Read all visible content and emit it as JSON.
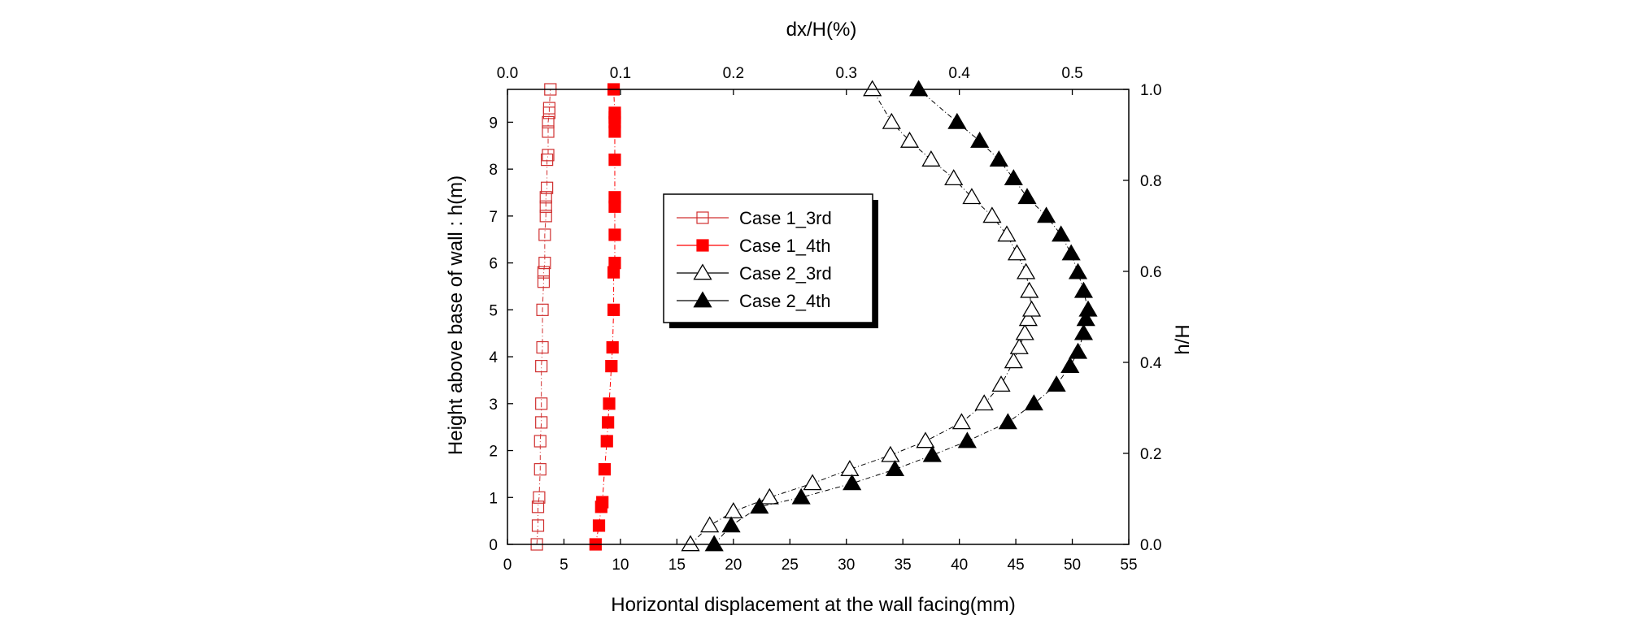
{
  "chart_data": {
    "type": "scatter",
    "title": "",
    "xlabel": "Horizontal displacement at the wall facing(mm)",
    "ylabel": "Height above base of wall : h(m)",
    "x2label": "dx/H(%)",
    "y2label": "h/H",
    "xlim": [
      0,
      55
    ],
    "ylim": [
      0,
      9.7
    ],
    "x2lim": [
      0,
      0.55
    ],
    "y2lim": [
      0,
      1.0
    ],
    "xticks": [
      "0",
      "5",
      "10",
      "15",
      "20",
      "25",
      "30",
      "35",
      "40",
      "45",
      "50",
      "55"
    ],
    "yticks": [
      "0",
      "1",
      "2",
      "3",
      "4",
      "5",
      "6",
      "7",
      "8",
      "9"
    ],
    "x2ticks": [
      "0.0",
      "0.1",
      "0.2",
      "0.3",
      "0.4",
      "0.5"
    ],
    "y2ticks": [
      "0.0",
      "0.2",
      "0.4",
      "0.6",
      "0.8",
      "1.0"
    ],
    "legend": {
      "position": "upper-middle"
    },
    "series": [
      {
        "name": "Case 1_3rd",
        "marker": "square-open",
        "color": "#d03030",
        "line_dash": "6,3,1,3",
        "x": [
          2.6,
          2.7,
          2.7,
          2.8,
          2.9,
          2.9,
          3.0,
          3.0,
          3.0,
          3.1,
          3.1,
          3.2,
          3.2,
          3.3,
          3.3,
          3.4,
          3.4,
          3.4,
          3.5,
          3.5,
          3.6,
          3.6,
          3.6,
          3.7,
          3.7,
          3.8
        ],
        "y": [
          0,
          0.4,
          0.8,
          1.0,
          1.6,
          2.2,
          2.6,
          3.0,
          3.8,
          4.2,
          5.0,
          5.6,
          5.8,
          6.0,
          6.6,
          7.0,
          7.2,
          7.4,
          7.6,
          8.2,
          8.3,
          8.8,
          9.0,
          9.2,
          9.3,
          9.7
        ]
      },
      {
        "name": "Case 1_4th",
        "marker": "square-filled",
        "color": "#ff0000",
        "line_dash": "6,3,1,3",
        "x": [
          7.8,
          8.1,
          8.3,
          8.4,
          8.6,
          8.8,
          8.9,
          9.0,
          9.2,
          9.3,
          9.4,
          9.4,
          9.5,
          9.5,
          9.5,
          9.5,
          9.5,
          9.5,
          9.5,
          9.5,
          9.5,
          9.4
        ],
        "y": [
          0,
          0.4,
          0.8,
          0.9,
          1.6,
          2.2,
          2.6,
          3.0,
          3.8,
          4.2,
          5.0,
          5.8,
          6.0,
          6.6,
          7.2,
          7.4,
          8.2,
          8.8,
          9.0,
          9.1,
          9.2,
          9.7
        ]
      },
      {
        "name": "Case 2_3rd",
        "marker": "triangle-open",
        "color": "#000000",
        "line_dash": "6,3,1,3",
        "x": [
          16.2,
          17.9,
          20.0,
          23.2,
          27.0,
          30.3,
          33.9,
          37.0,
          40.2,
          42.2,
          43.7,
          44.8,
          45.3,
          45.8,
          46.1,
          46.4,
          46.2,
          45.9,
          45.1,
          44.2,
          42.9,
          41.1,
          39.5,
          37.5,
          35.6,
          34.0,
          32.3
        ],
        "y": [
          0,
          0.4,
          0.7,
          1.0,
          1.3,
          1.6,
          1.9,
          2.2,
          2.6,
          3.0,
          3.4,
          3.9,
          4.2,
          4.5,
          4.8,
          5.0,
          5.4,
          5.8,
          6.2,
          6.6,
          7.0,
          7.4,
          7.8,
          8.2,
          8.6,
          9.0,
          9.7
        ]
      },
      {
        "name": "Case 2_4th",
        "marker": "triangle-filled",
        "color": "#000000",
        "line_dash": "6,3,1,3",
        "x": [
          18.3,
          19.8,
          22.3,
          26.0,
          30.5,
          34.3,
          37.6,
          40.7,
          44.3,
          46.6,
          48.6,
          49.8,
          50.5,
          51.0,
          51.2,
          51.4,
          51.0,
          50.5,
          49.9,
          49.0,
          47.7,
          46.0,
          44.8,
          43.5,
          41.8,
          39.8,
          36.4
        ],
        "y": [
          0,
          0.4,
          0.8,
          1.0,
          1.3,
          1.6,
          1.9,
          2.2,
          2.6,
          3.0,
          3.4,
          3.8,
          4.1,
          4.5,
          4.8,
          5.0,
          5.4,
          5.8,
          6.2,
          6.6,
          7.0,
          7.4,
          7.8,
          8.2,
          8.6,
          9.0,
          9.7
        ]
      }
    ]
  }
}
